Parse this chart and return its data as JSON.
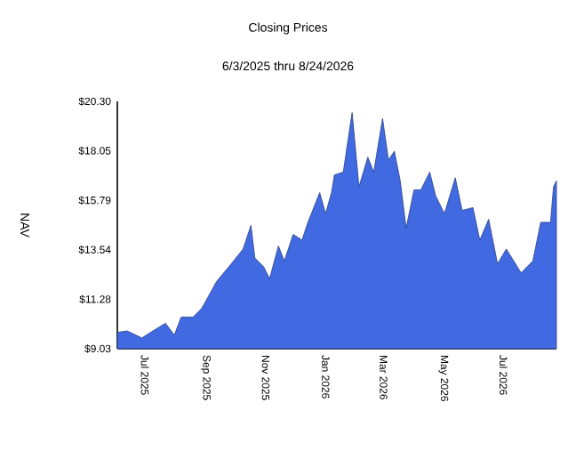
{
  "chart_data": {
    "type": "area",
    "title": "Closing Prices",
    "subtitle": "6/3/2025 thru 8/24/2026",
    "ylabel": "NAV",
    "x": [
      "2025-06-03",
      "2025-06-04",
      "2025-06-13",
      "2025-06-28",
      "2025-07-07",
      "2025-07-22",
      "2025-07-31",
      "2025-08-07",
      "2025-08-19",
      "2025-08-28",
      "2025-09-12",
      "2025-09-27",
      "2025-10-09",
      "2025-10-17",
      "2025-10-21",
      "2025-10-30",
      "2025-11-05",
      "2025-11-14",
      "2025-11-20",
      "2025-11-29",
      "2025-12-08",
      "2025-12-14",
      "2025-12-26",
      "2026-01-01",
      "2026-01-07",
      "2026-01-10",
      "2026-01-19",
      "2026-01-28",
      "2026-02-04",
      "2026-02-13",
      "2026-02-19",
      "2026-02-28",
      "2026-03-06",
      "2026-03-12",
      "2026-03-18",
      "2026-03-24",
      "2026-04-01",
      "2026-04-08",
      "2026-04-17",
      "2026-04-23",
      "2026-05-02",
      "2026-05-13",
      "2026-05-20",
      "2026-05-31",
      "2026-06-07",
      "2026-06-16",
      "2026-06-25",
      "2026-07-04",
      "2026-07-19",
      "2026-07-31",
      "2026-08-08",
      "2026-08-18",
      "2026-08-21",
      "2026-08-24"
    ],
    "series": [
      {
        "color": "#4169e1",
        "values": [
          9.8,
          9.78,
          9.84,
          9.52,
          9.78,
          10.19,
          9.65,
          10.47,
          10.47,
          10.87,
          12.09,
          12.9,
          13.57,
          14.65,
          13.17,
          12.76,
          12.22,
          13.71,
          13.03,
          14.24,
          13.98,
          14.79,
          16.14,
          15.19,
          16.14,
          16.95,
          17.08,
          19.79,
          16.41,
          17.76,
          17.08,
          19.52,
          17.63,
          18.03,
          16.68,
          14.52,
          16.27,
          16.27,
          17.08,
          16.0,
          15.19,
          16.82,
          15.33,
          15.46,
          13.98,
          14.93,
          12.9,
          13.57,
          12.49,
          13.03,
          14.79,
          14.79,
          16.41,
          16.68
        ]
      }
    ],
    "xlim": [
      "2025-06-03",
      "2026-08-24"
    ],
    "xticks": [
      {
        "value": "2025-07-01",
        "label": "Jul 2025"
      },
      {
        "value": "2025-09-01",
        "label": "Sep 2025"
      },
      {
        "value": "2025-11-01",
        "label": "Nov 2025"
      },
      {
        "value": "2026-01-01",
        "label": "Jan 2026"
      },
      {
        "value": "2026-03-01",
        "label": "Mar 2026"
      },
      {
        "value": "2026-05-01",
        "label": "May 2026"
      },
      {
        "value": "2026-07-01",
        "label": "Jul 2026"
      }
    ],
    "ylim": [
      9.03,
      20.3
    ],
    "yticks": [
      {
        "value": 9.03,
        "label": "$9.03"
      },
      {
        "value": 11.28,
        "label": "$11.28"
      },
      {
        "value": 13.54,
        "label": "$13.54"
      },
      {
        "value": 15.79,
        "label": "$15.79"
      },
      {
        "value": 18.05,
        "label": "$18.05"
      },
      {
        "value": 20.3,
        "label": "$20.30"
      }
    ]
  }
}
